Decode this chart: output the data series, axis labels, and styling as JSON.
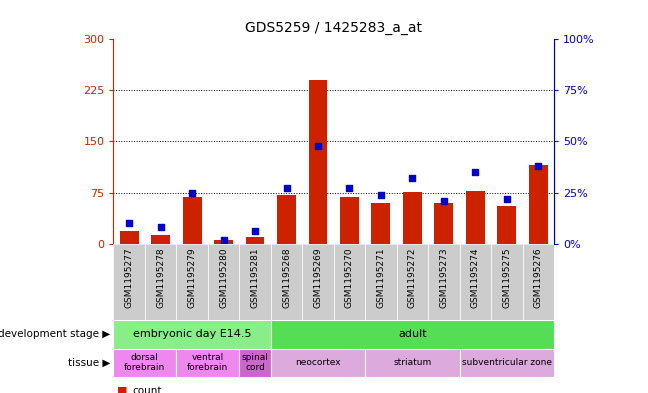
{
  "title": "GDS5259 / 1425283_a_at",
  "samples": [
    "GSM1195277",
    "GSM1195278",
    "GSM1195279",
    "GSM1195280",
    "GSM1195281",
    "GSM1195268",
    "GSM1195269",
    "GSM1195270",
    "GSM1195271",
    "GSM1195272",
    "GSM1195273",
    "GSM1195274",
    "GSM1195275",
    "GSM1195276"
  ],
  "count_values": [
    18,
    12,
    68,
    5,
    10,
    72,
    240,
    68,
    60,
    76,
    60,
    78,
    55,
    115
  ],
  "percentile_values": [
    10,
    8,
    25,
    2,
    6,
    27,
    48,
    27,
    24,
    32,
    21,
    35,
    22,
    38
  ],
  "ylim_left": [
    0,
    300
  ],
  "ylim_right": [
    0,
    100
  ],
  "yticks_left": [
    0,
    75,
    150,
    225,
    300
  ],
  "yticks_right": [
    0,
    25,
    50,
    75,
    100
  ],
  "bar_color": "#cc2200",
  "dot_color": "#0000cc",
  "left_axis_color": "#cc2200",
  "right_axis_color": "#0000cc",
  "development_stage_groups": [
    {
      "label": "embryonic day E14.5",
      "start": 0,
      "end": 5,
      "color": "#88ee88"
    },
    {
      "label": "adult",
      "start": 5,
      "end": 14,
      "color": "#55dd55"
    }
  ],
  "tissue_groups": [
    {
      "label": "dorsal\nforebrain",
      "start": 0,
      "end": 2,
      "color": "#ee88ee"
    },
    {
      "label": "ventral\nforebrain",
      "start": 2,
      "end": 4,
      "color": "#ee88ee"
    },
    {
      "label": "spinal\ncord",
      "start": 4,
      "end": 5,
      "color": "#cc66cc"
    },
    {
      "label": "neocortex",
      "start": 5,
      "end": 8,
      "color": "#ddaadd"
    },
    {
      "label": "striatum",
      "start": 8,
      "end": 11,
      "color": "#ddaadd"
    },
    {
      "label": "subventricular zone",
      "start": 11,
      "end": 14,
      "color": "#ddaadd"
    }
  ]
}
